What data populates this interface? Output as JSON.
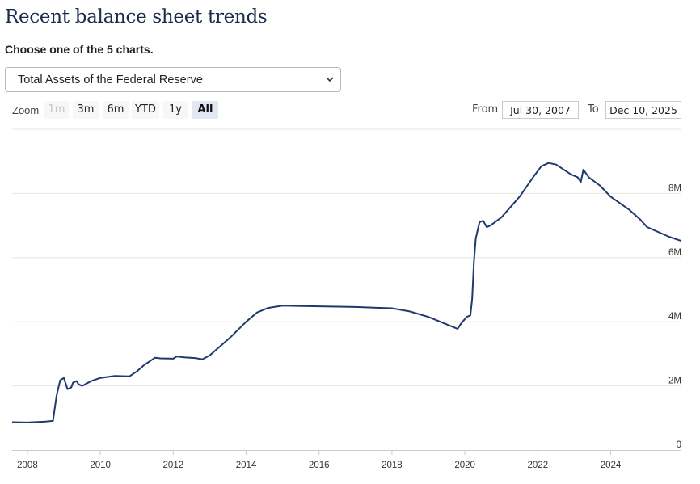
{
  "page": {
    "title": "Recent balance sheet trends",
    "subtitle": "Choose one of the 5 charts.",
    "select": {
      "value": "Total Assets of the Federal Reserve"
    }
  },
  "toolbar": {
    "zoom_label": "Zoom",
    "zoom_buttons": [
      {
        "label": "1m",
        "state": "disabled"
      },
      {
        "label": "3m",
        "state": "normal"
      },
      {
        "label": "6m",
        "state": "normal"
      },
      {
        "label": "YTD",
        "state": "normal"
      },
      {
        "label": "1y",
        "state": "normal"
      },
      {
        "label": "All",
        "state": "selected"
      }
    ],
    "from_label": "From",
    "from_value": "Jul 30, 2007",
    "to_label": "To",
    "to_value": "Dec 10, 2025"
  },
  "colors": {
    "line": "#1f3a6d",
    "grid": "#e6e6e6",
    "title": "#1b2a4a"
  },
  "chart_data": {
    "type": "line",
    "title": "",
    "xlabel": "",
    "ylabel": "",
    "x_ticks": [
      "2008",
      "2010",
      "2012",
      "2014",
      "2016",
      "2018",
      "2020",
      "2022",
      "2024"
    ],
    "y_ticks": [
      "0",
      "2M",
      "4M",
      "6M",
      "8M"
    ],
    "xlim": [
      2007.58,
      2025.94
    ],
    "ylim": [
      0,
      10000000
    ],
    "grid": true,
    "series": [
      {
        "name": "",
        "x": [
          2007.58,
          2008.0,
          2008.5,
          2008.7,
          2008.8,
          2008.9,
          2009.0,
          2009.1,
          2009.2,
          2009.25,
          2009.35,
          2009.4,
          2009.5,
          2009.6,
          2009.75,
          2010.0,
          2010.4,
          2010.8,
          2011.0,
          2011.2,
          2011.5,
          2011.65,
          2012.0,
          2012.1,
          2012.3,
          2012.6,
          2012.8,
          2013.0,
          2013.3,
          2013.6,
          2014.0,
          2014.3,
          2014.6,
          2015.0,
          2015.5,
          2016.0,
          2016.5,
          2017.0,
          2017.5,
          2018.0,
          2018.5,
          2019.0,
          2019.5,
          2019.8,
          2019.9,
          2020.05,
          2020.15,
          2020.2,
          2020.25,
          2020.3,
          2020.4,
          2020.5,
          2020.6,
          2020.7,
          2021.0,
          2021.5,
          2021.9,
          2022.1,
          2022.3,
          2022.5,
          2022.7,
          2022.9,
          2023.1,
          2023.18,
          2023.25,
          2023.4,
          2023.7,
          2024.0,
          2024.5,
          2024.8,
          2025.0,
          2025.3,
          2025.6,
          2025.94
        ],
        "values": [
          870000,
          860000,
          890000,
          910000,
          1700000,
          2180000,
          2250000,
          1900000,
          1950000,
          2100000,
          2150000,
          2050000,
          2000000,
          2060000,
          2150000,
          2250000,
          2310000,
          2300000,
          2450000,
          2650000,
          2880000,
          2860000,
          2850000,
          2920000,
          2890000,
          2870000,
          2830000,
          2950000,
          3250000,
          3550000,
          4000000,
          4290000,
          4430000,
          4500000,
          4490000,
          4480000,
          4470000,
          4460000,
          4440000,
          4420000,
          4320000,
          4150000,
          3920000,
          3780000,
          3950000,
          4150000,
          4200000,
          4700000,
          5900000,
          6600000,
          7100000,
          7150000,
          6950000,
          7000000,
          7250000,
          7900000,
          8550000,
          8850000,
          8950000,
          8900000,
          8750000,
          8600000,
          8500000,
          8350000,
          8740000,
          8500000,
          8250000,
          7900000,
          7500000,
          7200000,
          6950000,
          6800000,
          6650000,
          6520000
        ]
      }
    ]
  }
}
